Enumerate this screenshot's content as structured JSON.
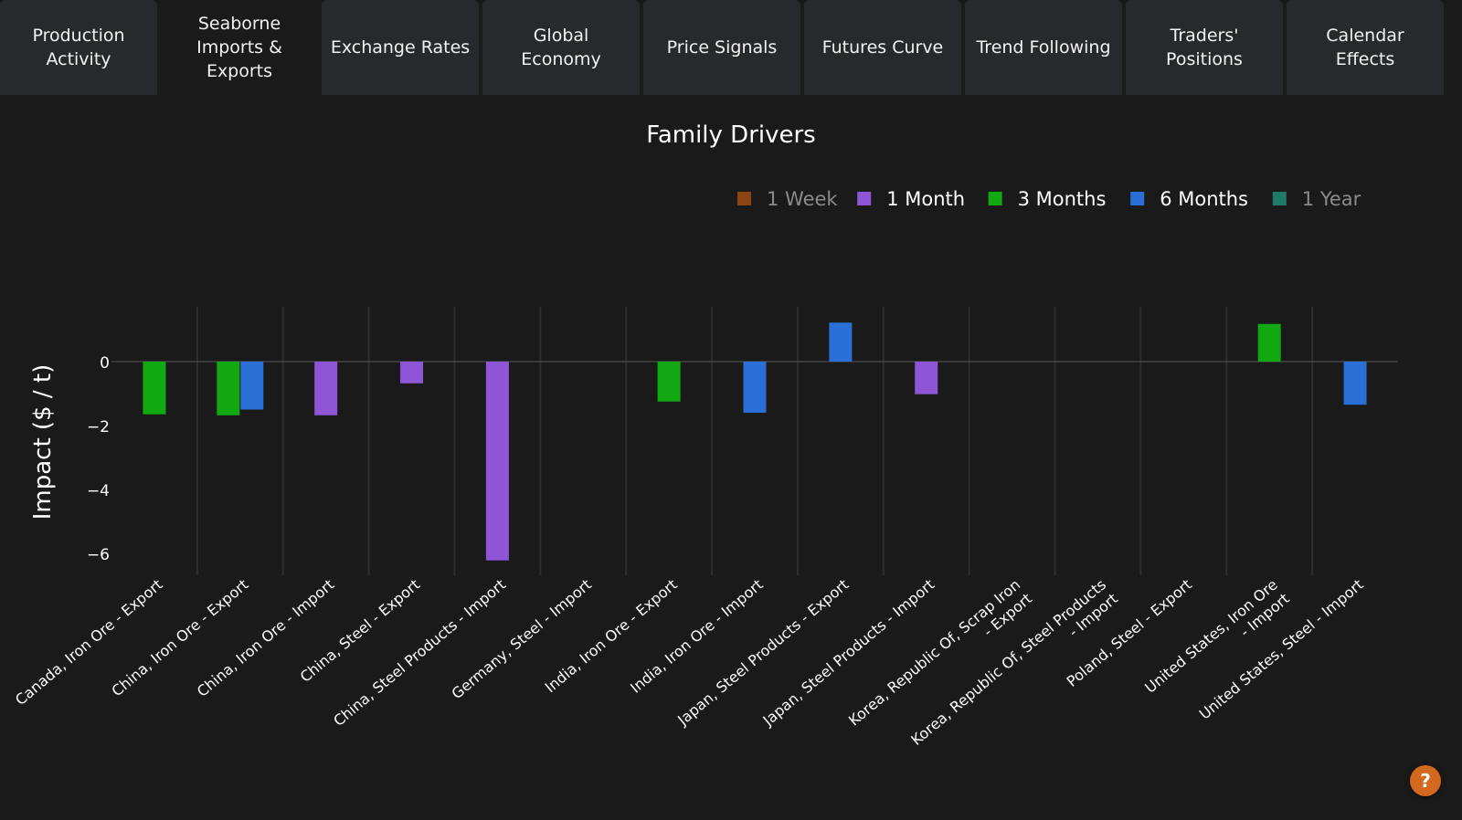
{
  "tabs": [
    {
      "label": "Production\nActivity",
      "name": "tab-production-activity"
    },
    {
      "label": "Seaborne\nImports &\nExports",
      "name": "tab-seaborne-imports-exports",
      "active": true
    },
    {
      "label": "Exchange Rates",
      "name": "tab-exchange-rates"
    },
    {
      "label": "Global\nEconomy",
      "name": "tab-global-economy"
    },
    {
      "label": "Price Signals",
      "name": "tab-price-signals"
    },
    {
      "label": "Futures Curve",
      "name": "tab-futures-curve"
    },
    {
      "label": "Trend Following",
      "name": "tab-trend-following"
    },
    {
      "label": "Traders'\nPositions",
      "name": "tab-traders-positions"
    },
    {
      "label": "Calendar\nEffects",
      "name": "tab-calendar-effects"
    }
  ],
  "help": {
    "label": "?"
  },
  "chart_data": {
    "type": "bar",
    "title": "Family Drivers",
    "ylabel": "Impact ($ / t)",
    "xlabel": "",
    "ylim": [
      -6.5,
      1.6
    ],
    "yticks": [
      0,
      -2,
      -4,
      -6
    ],
    "yticklabels": [
      "0",
      "−2",
      "−4",
      "−6"
    ],
    "legend_position": "top-right",
    "grid": "vertical",
    "categories": [
      "Canada, Iron Ore - Export",
      "China, Iron Ore - Export",
      "China, Iron Ore - Import",
      "China, Steel - Export",
      "China, Steel Products - Import",
      "Germany, Steel - Import",
      "India, Iron Ore - Export",
      "India, Iron Ore - Import",
      "Japan, Steel Products - Export",
      "Japan, Steel Products - Import",
      "Korea, Republic Of, Scrap Iron\n - Export",
      "Korea, Republic Of, Steel Products\n - Import",
      "Poland, Steel - Export",
      "United States, Iron Ore\n - Import",
      "United States, Steel - Import"
    ],
    "series": [
      {
        "name": "1 Week",
        "color": "#8b4513",
        "visible": false,
        "values": [
          null,
          null,
          null,
          null,
          null,
          null,
          null,
          null,
          null,
          null,
          null,
          null,
          null,
          null,
          null
        ]
      },
      {
        "name": "1 Month",
        "color": "#8e55d6",
        "visible": true,
        "values": [
          null,
          null,
          -1.68,
          -0.68,
          -6.22,
          null,
          null,
          null,
          null,
          -1.02,
          null,
          null,
          null,
          null,
          null
        ]
      },
      {
        "name": "3 Months",
        "color": "#11a811",
        "visible": true,
        "values": [
          -1.65,
          -1.68,
          null,
          null,
          null,
          null,
          -1.25,
          null,
          null,
          null,
          null,
          null,
          null,
          1.18,
          null
        ]
      },
      {
        "name": "6 Months",
        "color": "#2a6fd6",
        "visible": true,
        "values": [
          null,
          -1.5,
          null,
          null,
          null,
          null,
          null,
          -1.6,
          1.22,
          null,
          null,
          null,
          null,
          null,
          -1.35
        ]
      },
      {
        "name": "1 Year",
        "color": "#1f7a6a",
        "visible": false,
        "values": [
          null,
          null,
          null,
          null,
          null,
          null,
          null,
          null,
          null,
          null,
          null,
          null,
          null,
          null,
          null
        ]
      }
    ]
  }
}
